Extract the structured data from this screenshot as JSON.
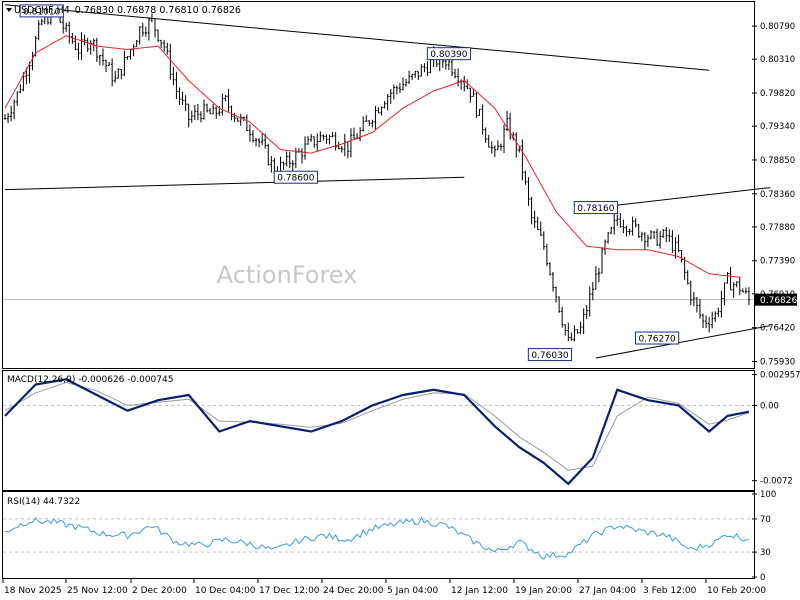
{
  "header": {
    "symbol_label": "USDCHF,H4",
    "ohlc": "0.76830 0.76878 0.76810 0.76826"
  },
  "watermark": "ActionForex",
  "colors": {
    "candle": "#000000",
    "ma": "#e8232d",
    "macd": "#0c1f6e",
    "signal": "#9c9c9c",
    "rsi": "#3b9ddb",
    "trendline": "#000000",
    "price_box_bg": "#000000",
    "price_box_fg": "#ffffff",
    "grid": "#bdbdbd",
    "watermark": "#c9c9c9"
  },
  "price_panel": {
    "current_price_label": "0.76826",
    "price_ticks": [
      "0.80790",
      "0.80310",
      "0.79820",
      "0.79340",
      "0.78850",
      "0.78360",
      "0.77880",
      "0.77390",
      "0.76910",
      "0.76420",
      "0.75930"
    ],
    "annotations": [
      "0.81010",
      "0.80390",
      "0.78600",
      "0.78160",
      "0.76270",
      "0.76030"
    ]
  },
  "macd_panel": {
    "title": "MACD(12,26,9) -0.000626 -0.000745",
    "ticks": [
      "0.002957",
      "0.00",
      "-0.0072"
    ]
  },
  "rsi_panel": {
    "title": "RSI(14) 44.7322",
    "ticks": [
      "100",
      "70",
      "30",
      "0"
    ]
  },
  "x_axis": {
    "labels": [
      "18 Nov 2025",
      "25 Nov 12:00",
      "2 Dec 20:00",
      "10 Dec 04:00",
      "17 Dec 12:00",
      "24 Dec 20:00",
      "5 Jan 04:00",
      "12 Jan 12:00",
      "19 Jan 20:00",
      "27 Jan 04:00",
      "3 Feb 12:00",
      "10 Feb 20:00"
    ]
  },
  "chart_data": {
    "type": "candlestick",
    "symbol": "USDCHF",
    "timeframe": "H4",
    "last_close": 0.76826,
    "x_labels": [
      "18 Nov 2025",
      "25 Nov 12:00",
      "2 Dec 20:00",
      "10 Dec 04:00",
      "17 Dec 12:00",
      "24 Dec 20:00",
      "5 Jan 04:00",
      "12 Jan 12:00",
      "19 Jan 20:00",
      "27 Jan 04:00",
      "3 Feb 12:00",
      "10 Feb 20:00"
    ],
    "y_range": [
      0.7585,
      0.8111
    ],
    "close_path": [
      [
        0,
        0.7945
      ],
      [
        4,
        0.798
      ],
      [
        8,
        0.803
      ],
      [
        12,
        0.8085
      ],
      [
        16,
        0.8101
      ],
      [
        20,
        0.807
      ],
      [
        24,
        0.8045
      ],
      [
        28,
        0.806
      ],
      [
        32,
        0.803
      ],
      [
        36,
        0.8
      ],
      [
        40,
        0.8035
      ],
      [
        44,
        0.8075
      ],
      [
        48,
        0.8085
      ],
      [
        52,
        0.805
      ],
      [
        56,
        0.7985
      ],
      [
        60,
        0.7945
      ],
      [
        64,
        0.7955
      ],
      [
        68,
        0.795
      ],
      [
        72,
        0.797
      ],
      [
        76,
        0.7945
      ],
      [
        80,
        0.793
      ],
      [
        84,
        0.7905
      ],
      [
        88,
        0.787
      ],
      [
        92,
        0.788
      ],
      [
        96,
        0.7895
      ],
      [
        100,
        0.791
      ],
      [
        104,
        0.792
      ],
      [
        108,
        0.7915
      ],
      [
        112,
        0.7905
      ],
      [
        116,
        0.7925
      ],
      [
        120,
        0.795
      ],
      [
        124,
        0.7975
      ],
      [
        128,
        0.799
      ],
      [
        132,
        0.8
      ],
      [
        136,
        0.8015
      ],
      [
        140,
        0.803
      ],
      [
        144,
        0.803
      ],
      [
        148,
        0.801
      ],
      [
        152,
        0.7985
      ],
      [
        156,
        0.7935
      ],
      [
        160,
        0.789
      ],
      [
        164,
        0.7935
      ],
      [
        168,
        0.7895
      ],
      [
        172,
        0.78
      ],
      [
        176,
        0.776
      ],
      [
        180,
        0.769
      ],
      [
        184,
        0.762
      ],
      [
        188,
        0.764
      ],
      [
        192,
        0.77
      ],
      [
        196,
        0.776
      ],
      [
        200,
        0.78
      ],
      [
        204,
        0.779
      ],
      [
        208,
        0.778
      ],
      [
        212,
        0.777
      ],
      [
        216,
        0.7775
      ],
      [
        220,
        0.775
      ],
      [
        224,
        0.769
      ],
      [
        228,
        0.765
      ],
      [
        232,
        0.766
      ],
      [
        236,
        0.771
      ],
      [
        240,
        0.77
      ],
      [
        243,
        0.76826
      ]
    ],
    "moving_average": [
      [
        0,
        0.796
      ],
      [
        10,
        0.804
      ],
      [
        20,
        0.8065
      ],
      [
        30,
        0.805
      ],
      [
        40,
        0.8045
      ],
      [
        50,
        0.805
      ],
      [
        60,
        0.8
      ],
      [
        70,
        0.796
      ],
      [
        80,
        0.794
      ],
      [
        90,
        0.79
      ],
      [
        100,
        0.7895
      ],
      [
        110,
        0.7908
      ],
      [
        120,
        0.7925
      ],
      [
        130,
        0.796
      ],
      [
        140,
        0.7985
      ],
      [
        150,
        0.8
      ],
      [
        160,
        0.796
      ],
      [
        170,
        0.789
      ],
      [
        180,
        0.781
      ],
      [
        190,
        0.776
      ],
      [
        200,
        0.7755
      ],
      [
        210,
        0.7755
      ],
      [
        220,
        0.7745
      ],
      [
        230,
        0.772
      ],
      [
        240,
        0.7715
      ]
    ],
    "trendlines": [
      {
        "from": [
          0,
          0.811
        ],
        "to": [
          230,
          0.8015
        ]
      },
      {
        "from": [
          0,
          0.7842
        ],
        "to": [
          150,
          0.786
        ]
      },
      {
        "from": [
          193,
          0.7816
        ],
        "to": [
          250,
          0.7845
        ]
      },
      {
        "from": [
          193,
          0.7598
        ],
        "to": [
          250,
          0.7645
        ]
      }
    ],
    "annotations": [
      {
        "x": 12,
        "value": 0.8101
      },
      {
        "x": 145,
        "value": 0.8039
      },
      {
        "x": 95,
        "value": 0.786
      },
      {
        "x": 193,
        "value": 0.7816
      },
      {
        "x": 213,
        "value": 0.7627
      },
      {
        "x": 178,
        "value": 0.7603
      }
    ],
    "macd": {
      "params": [
        12,
        26,
        9
      ],
      "value": -0.000626,
      "signal": -0.000745,
      "y_range": [
        -0.008,
        0.0032
      ],
      "macd_path": [
        [
          0,
          -0.001
        ],
        [
          10,
          0.002
        ],
        [
          20,
          0.0025
        ],
        [
          30,
          0.001
        ],
        [
          40,
          -0.0005
        ],
        [
          50,
          0.0005
        ],
        [
          60,
          0.001
        ],
        [
          70,
          -0.0025
        ],
        [
          80,
          -0.0015
        ],
        [
          90,
          -0.002
        ],
        [
          100,
          -0.0025
        ],
        [
          110,
          -0.0015
        ],
        [
          120,
          0.0
        ],
        [
          130,
          0.001
        ],
        [
          140,
          0.0015
        ],
        [
          150,
          0.001
        ],
        [
          160,
          -0.002
        ],
        [
          168,
          -0.004
        ],
        [
          176,
          -0.0055
        ],
        [
          184,
          -0.0075
        ],
        [
          192,
          -0.005
        ],
        [
          200,
          0.0015
        ],
        [
          210,
          0.0005
        ],
        [
          220,
          0.0
        ],
        [
          230,
          -0.0025
        ],
        [
          236,
          -0.001
        ],
        [
          243,
          -0.0006
        ]
      ],
      "signal_path": [
        [
          0,
          -0.0005
        ],
        [
          10,
          0.0012
        ],
        [
          20,
          0.0022
        ],
        [
          30,
          0.0014
        ],
        [
          40,
          0.0
        ],
        [
          50,
          0.0003
        ],
        [
          60,
          0.0006
        ],
        [
          70,
          -0.0015
        ],
        [
          80,
          -0.0016
        ],
        [
          90,
          -0.0018
        ],
        [
          100,
          -0.0021
        ],
        [
          110,
          -0.0017
        ],
        [
          120,
          -0.0005
        ],
        [
          130,
          0.0006
        ],
        [
          140,
          0.0012
        ],
        [
          150,
          0.0011
        ],
        [
          160,
          -0.001
        ],
        [
          168,
          -0.003
        ],
        [
          176,
          -0.0045
        ],
        [
          184,
          -0.0062
        ],
        [
          192,
          -0.0058
        ],
        [
          200,
          -0.001
        ],
        [
          210,
          0.0008
        ],
        [
          220,
          0.0002
        ],
        [
          230,
          -0.0018
        ],
        [
          236,
          -0.0014
        ],
        [
          243,
          -0.0007
        ]
      ]
    },
    "rsi": {
      "period": 14,
      "value": 44.7322,
      "levels": [
        70,
        30
      ],
      "y_range": [
        0,
        100
      ],
      "path": [
        [
          0,
          55
        ],
        [
          8,
          68
        ],
        [
          16,
          66
        ],
        [
          24,
          60
        ],
        [
          32,
          52
        ],
        [
          40,
          50
        ],
        [
          48,
          62
        ],
        [
          56,
          42
        ],
        [
          64,
          38
        ],
        [
          72,
          45
        ],
        [
          80,
          40
        ],
        [
          88,
          32
        ],
        [
          96,
          44
        ],
        [
          104,
          50
        ],
        [
          112,
          45
        ],
        [
          120,
          58
        ],
        [
          128,
          64
        ],
        [
          136,
          68
        ],
        [
          144,
          62
        ],
        [
          152,
          45
        ],
        [
          160,
          30
        ],
        [
          168,
          42
        ],
        [
          176,
          25
        ],
        [
          184,
          28
        ],
        [
          192,
          50
        ],
        [
          200,
          62
        ],
        [
          208,
          55
        ],
        [
          216,
          50
        ],
        [
          224,
          33
        ],
        [
          232,
          42
        ],
        [
          236,
          52
        ],
        [
          243,
          45
        ]
      ]
    }
  }
}
